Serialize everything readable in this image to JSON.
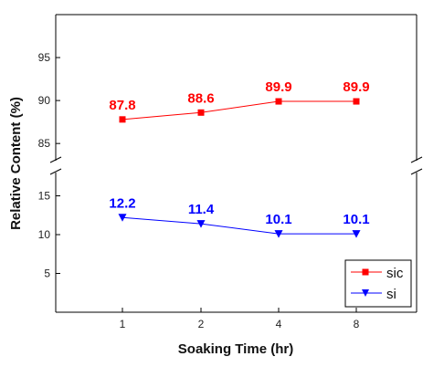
{
  "chart_data": {
    "type": "line",
    "xlabel": "Soaking Time (hr)",
    "ylabel": "Relative Content (%)",
    "categories": [
      "1",
      "2",
      "4",
      "8"
    ],
    "y_axis_break": true,
    "upper_ylim": [
      83,
      100
    ],
    "lower_ylim": [
      0,
      18
    ],
    "upper_yticks": [
      "85",
      "90",
      "95"
    ],
    "lower_yticks": [
      "5",
      "10",
      "15"
    ],
    "legend_position": "bottom-right",
    "series": [
      {
        "name": "sic",
        "values": [
          87.8,
          88.6,
          89.9,
          89.9
        ],
        "labels": [
          "87.8",
          "88.6",
          "89.9",
          "89.9"
        ],
        "color": "#ff0000",
        "marker": "square",
        "panel": "upper"
      },
      {
        "name": "si",
        "values": [
          12.2,
          11.4,
          10.1,
          10.1
        ],
        "labels": [
          "12.2",
          "11.4",
          "10.1",
          "10.1"
        ],
        "color": "#0000ff",
        "marker": "triangle-down",
        "panel": "lower"
      }
    ]
  }
}
